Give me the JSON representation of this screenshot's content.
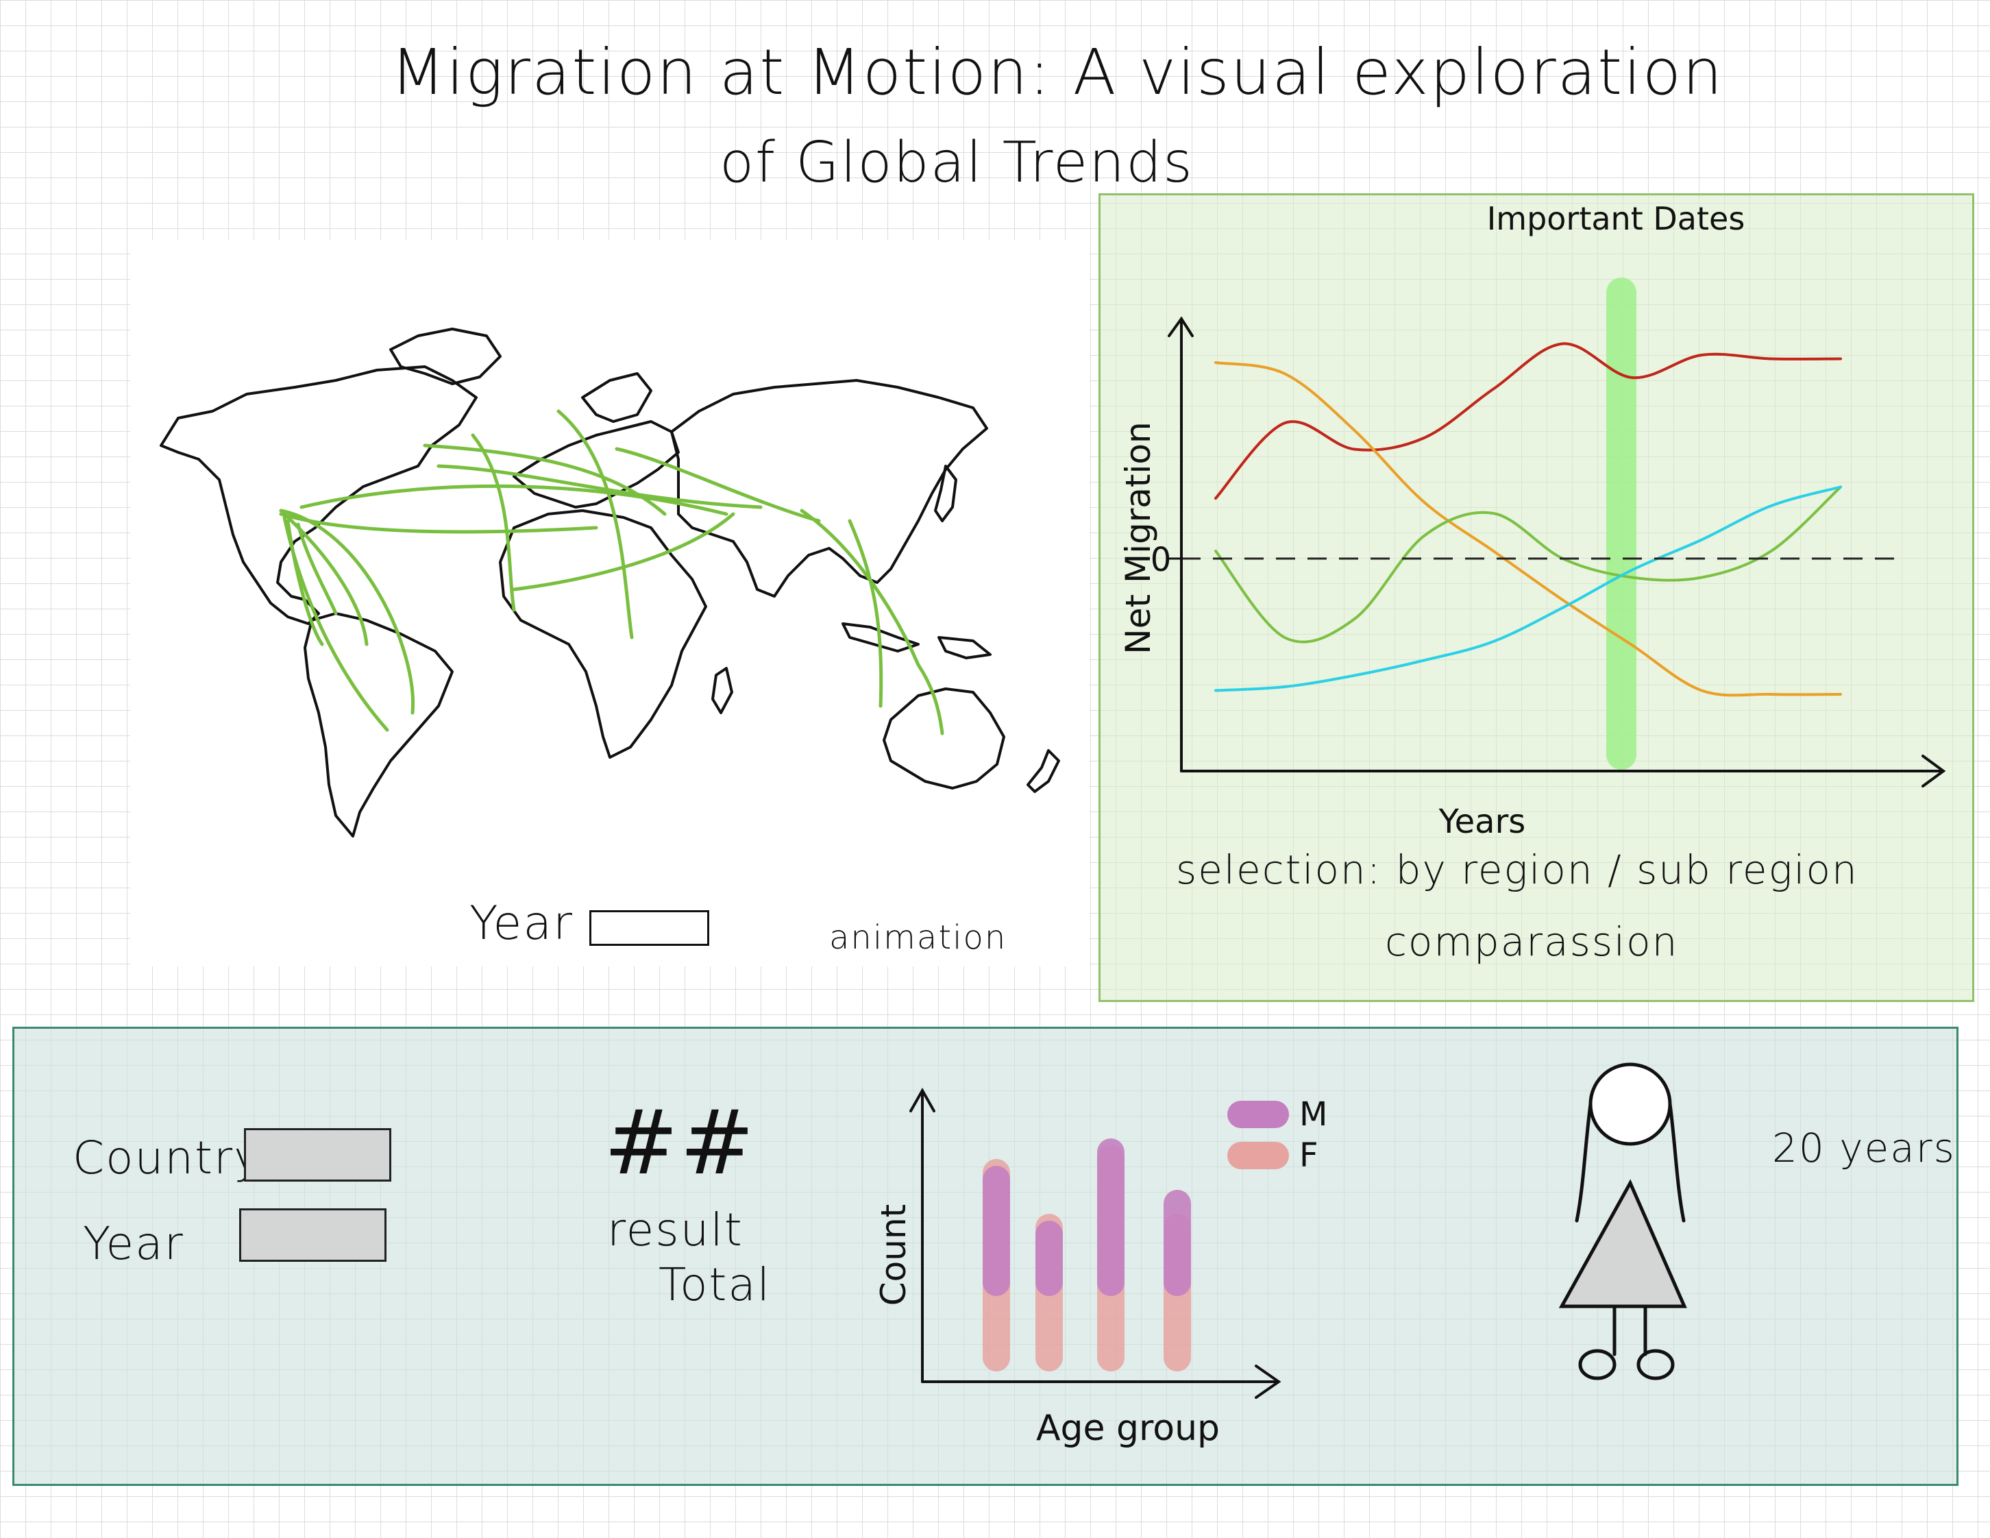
{
  "header": {
    "title_line1": "Migration at Motion: A visual exploration",
    "title_line2": "of Global Trends"
  },
  "map_panel": {
    "year_label": "Year",
    "year_value": "",
    "animation_label": "animation",
    "flow_color": "#79bf3f"
  },
  "chart_data": [
    {
      "type": "line",
      "xlabel": "Years",
      "ylabel": "Net Migration",
      "reference_line": {
        "y": 0,
        "label": "0",
        "style": "dashed"
      },
      "highlight": {
        "label": "Important Dates",
        "color": "#9fee8a"
      },
      "x": [
        1,
        2,
        3,
        4,
        5,
        6,
        7,
        8,
        9,
        10
      ],
      "series": [
        {
          "color": "#c0261b",
          "values": [
            1.6,
            3.6,
            2.9,
            3.2,
            4.5,
            5.7,
            4.8,
            5.4,
            5.3,
            5.3
          ]
        },
        {
          "color": "#eaa028",
          "values": [
            5.2,
            4.9,
            3.4,
            1.5,
            0.2,
            -1.1,
            -2.3,
            -3.5,
            -3.6,
            -3.6
          ]
        },
        {
          "color": "#7cc043",
          "values": [
            0.2,
            -2.1,
            -1.6,
            0.6,
            1.2,
            0.0,
            -0.5,
            -0.5,
            0.2,
            1.9
          ]
        },
        {
          "color": "#2bd0e6",
          "values": [
            -3.5,
            -3.4,
            -3.1,
            -2.7,
            -2.2,
            -1.3,
            -0.3,
            0.5,
            1.4,
            1.9
          ]
        }
      ],
      "selection_label": "selection: by region / sub region",
      "comparison_label": "comparassion"
    },
    {
      "type": "bar",
      "xlabel": "Age group",
      "ylabel": "Count",
      "categories": [
        "",
        "",
        "",
        ""
      ],
      "series": [
        {
          "name": "M",
          "color": "#c47fc0",
          "values": [
            190,
            110,
            230,
            155
          ]
        },
        {
          "name": "F",
          "color": "#e6a3a0",
          "values": [
            310,
            230,
            330,
            230
          ]
        }
      ]
    }
  ],
  "bottom_panel": {
    "country_label": "Country",
    "country_value": "",
    "year_label": "Year",
    "year_value": "",
    "result_symbol": "##",
    "result_label": "result",
    "total_label": "Total",
    "age_label": "20 years",
    "figure_icon": "female-person-icon"
  }
}
